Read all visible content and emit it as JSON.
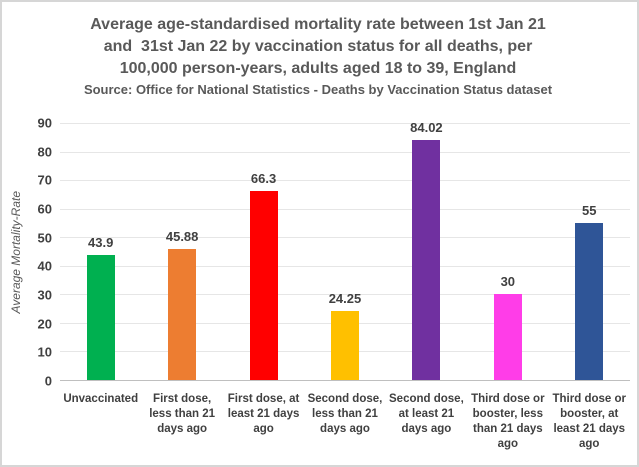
{
  "title": {
    "line1": "Average age-standardised mortality rate between 1st Jan 21",
    "line2": "and  31st Jan 22 by vaccination status for all deaths, per",
    "line3": "100,000 person-years, adults aged 18 to 39, England",
    "source": "Source: Office for National Statistics - Deaths by Vaccination Status dataset"
  },
  "chart_data": {
    "type": "bar",
    "title": "Average age-standardised mortality rate between 1st Jan 21 and 31st Jan 22 by vaccination status for all deaths, per 100,000 person-years, adults aged 18 to 39, England",
    "subtitle": "Source: Office for National Statistics - Deaths by Vaccination Status dataset",
    "xlabel": "",
    "ylabel": "Average Mortality-Rate",
    "ylim": [
      0,
      90
    ],
    "yticks": [
      0,
      10,
      20,
      30,
      40,
      50,
      60,
      70,
      80,
      90
    ],
    "grid": true,
    "legend": false,
    "categories": [
      "Unvaccinated",
      "First dose, less than 21 days ago",
      "First dose, at least 21 days ago",
      "Second dose, less than 21 days ago",
      "Second dose, at least 21 days ago",
      "Third dose or booster, less than 21 days ago",
      "Third dose or booster, at least 21 days ago"
    ],
    "values": [
      43.9,
      45.88,
      66.3,
      24.25,
      84.02,
      30,
      55
    ],
    "value_labels": [
      "43.9",
      "45.88",
      "66.3",
      "24.25",
      "84.02",
      "30",
      "55"
    ],
    "bar_colors": [
      "#00B050",
      "#ED7D31",
      "#FF0000",
      "#FFC000",
      "#7030A0",
      "#FF3DE8",
      "#2F5597"
    ]
  },
  "colors": {
    "title_text": "#595959",
    "axis_text": "#404040",
    "gridline": "#E6E6E6",
    "axis_line": "#BFBFBF",
    "frame_border": "#D6D6D6",
    "background": "#FFFFFF"
  }
}
